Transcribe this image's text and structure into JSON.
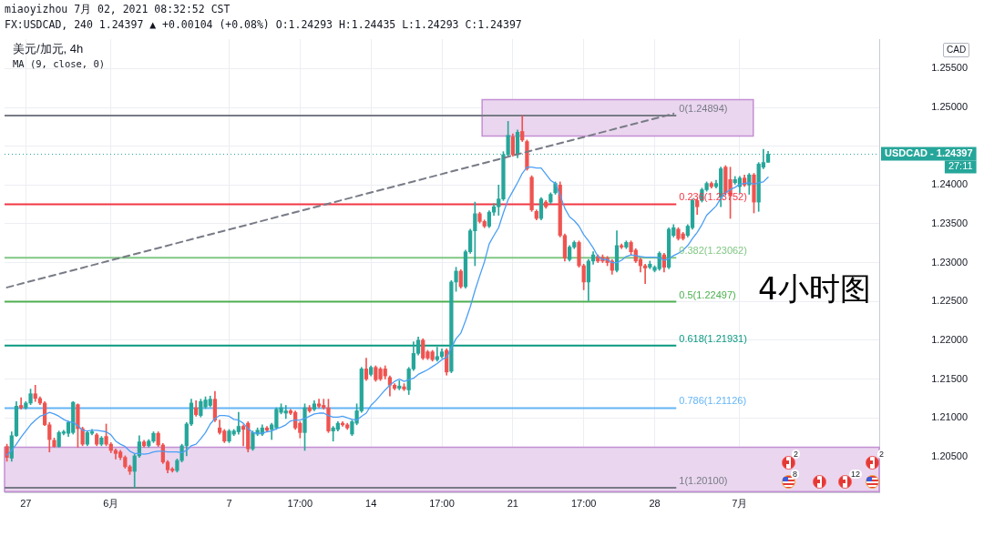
{
  "chart_data": {
    "type": "candlestick",
    "title": "美元/加元, 4h",
    "subtitle": "MA (9, close, 0)",
    "ylabel": "CAD",
    "annotations": [
      "miaoyizhou 7月 02, 2021 08:32:52 CST",
      "FX:USDCAD, 240 1.24397 ▲ +0.00104 (+0.08%) O:1.24293 H:1.24435 L:1.24293 C:1.24397",
      "4小时图",
      "27:11",
      "2",
      "8",
      "12",
      "2"
    ],
    "categories": [
      null,
      null,
      null,
      null,
      "27",
      null,
      null,
      null,
      null,
      null,
      null,
      null,
      null,
      null,
      null,
      null,
      null,
      null,
      null,
      null,
      null,
      null,
      "6月",
      null,
      null,
      null,
      null,
      null,
      null,
      null,
      null,
      null,
      null,
      null,
      null,
      null,
      null,
      null,
      null,
      null,
      null,
      null,
      null,
      null,
      null,
      null,
      null,
      "7",
      null,
      null,
      null,
      null,
      null,
      null,
      null,
      null,
      null,
      null,
      null,
      null,
      null,
      null,
      "17:00",
      null,
      null,
      null,
      null,
      null,
      null,
      null,
      null,
      null,
      null,
      null,
      null,
      null,
      null,
      "14",
      null,
      null,
      null,
      null,
      null,
      null,
      null,
      null,
      null,
      null,
      null,
      null,
      null,
      null,
      "17:00",
      null,
      null,
      null,
      null,
      null,
      null,
      null,
      null,
      null,
      null,
      null,
      null,
      null,
      null,
      "21",
      null,
      null,
      null,
      null,
      null,
      null,
      null,
      null,
      null,
      null,
      null,
      null,
      null,
      null,
      "17:00",
      null,
      null,
      null,
      null,
      null,
      null,
      null,
      null,
      null,
      null,
      null,
      null,
      null,
      null,
      "28",
      null,
      null,
      null,
      null,
      null,
      null,
      null,
      null,
      null,
      null,
      null,
      null,
      null,
      null,
      null,
      null,
      null,
      "7月",
      null,
      null,
      null,
      null,
      null,
      null,
      null,
      null,
      null,
      null,
      null,
      null,
      null,
      null,
      null,
      null,
      null,
      null,
      null,
      null,
      null,
      null,
      null,
      null,
      null,
      null,
      null,
      null,
      null
    ],
    "ohlc": [
      [
        1.2063,
        1.2066,
        1.2044,
        1.2049
      ],
      [
        1.2048,
        1.2082,
        1.2044,
        1.2077
      ],
      [
        1.2077,
        1.2121,
        1.2076,
        1.2115
      ],
      [
        1.2116,
        1.2126,
        1.2111,
        1.2113
      ],
      [
        1.2113,
        1.2121,
        1.2111,
        1.2119
      ],
      [
        1.2119,
        1.2137,
        1.2117,
        1.2131
      ],
      [
        1.2131,
        1.2142,
        1.2121,
        1.2125
      ],
      [
        1.2125,
        1.2127,
        1.2117,
        1.2119
      ],
      [
        1.2119,
        1.2121,
        1.209,
        1.2091
      ],
      [
        1.2091,
        1.2094,
        1.2056,
        1.2072
      ],
      [
        1.2071,
        1.2074,
        1.2062,
        1.2063
      ],
      [
        1.2063,
        1.2083,
        1.2062,
        1.2081
      ],
      [
        1.208,
        1.2084,
        1.2078,
        1.2082
      ],
      [
        1.208,
        1.2096,
        1.2076,
        1.2094
      ],
      [
        1.2081,
        1.2121,
        1.2079,
        1.212
      ],
      [
        1.2117,
        1.2118,
        1.2062,
        1.2086
      ],
      [
        1.2086,
        1.2088,
        1.2064,
        1.2066
      ],
      [
        1.2066,
        1.2083,
        1.2064,
        1.2081
      ],
      [
        1.208,
        1.2085,
        1.2078,
        1.2082
      ],
      [
        1.2078,
        1.208,
        1.2064,
        1.2066
      ],
      [
        1.2066,
        1.2076,
        1.2064,
        1.2074
      ],
      [
        1.2076,
        1.2092,
        1.2064,
        1.2066
      ],
      [
        1.2066,
        1.2068,
        1.2055,
        1.2058
      ],
      [
        1.2058,
        1.206,
        1.2047,
        1.2054
      ],
      [
        1.2056,
        1.2058,
        1.2046,
        1.2049
      ],
      [
        1.2049,
        1.2051,
        1.2035,
        1.2037
      ],
      [
        1.2037,
        1.2039,
        1.2027,
        1.2031
      ],
      [
        1.2031,
        1.2053,
        1.201,
        1.2051
      ],
      [
        1.2051,
        1.2077,
        1.2049,
        1.2069
      ],
      [
        1.2069,
        1.2071,
        1.2062,
        1.2064
      ],
      [
        1.2064,
        1.2072,
        1.2062,
        1.207
      ],
      [
        1.207,
        1.2082,
        1.2068,
        1.208
      ],
      [
        1.208,
        1.2082,
        1.2063,
        1.2065
      ],
      [
        1.2065,
        1.2067,
        1.2041,
        1.2043
      ],
      [
        1.2043,
        1.2045,
        1.2029,
        1.2033
      ],
      [
        1.2034,
        1.2036,
        1.203,
        1.2032
      ],
      [
        1.2032,
        1.2047,
        1.203,
        1.2045
      ],
      [
        1.2045,
        1.2066,
        1.2043,
        1.2064
      ],
      [
        1.2064,
        1.2094,
        1.2051,
        1.2092
      ],
      [
        1.2092,
        1.2124,
        1.209,
        1.2119
      ],
      [
        1.2113,
        1.2122,
        1.2102,
        1.2104
      ],
      [
        1.2103,
        1.2124,
        1.2101,
        1.2121
      ],
      [
        1.2114,
        1.2127,
        1.2112,
        1.2123
      ],
      [
        1.2116,
        1.2128,
        1.2114,
        1.2124
      ],
      [
        1.2124,
        1.2134,
        1.2095,
        1.2097
      ],
      [
        1.2087,
        1.2097,
        1.2079,
        1.2081
      ],
      [
        1.2083,
        1.2085,
        1.2068,
        1.207
      ],
      [
        1.207,
        1.2085,
        1.2068,
        1.2083
      ],
      [
        1.2079,
        1.2085,
        1.2077,
        1.2083
      ],
      [
        1.2082,
        1.2107,
        1.2079,
        1.2089
      ],
      [
        1.2089,
        1.2091,
        1.2064,
        1.2085
      ],
      [
        1.2093,
        1.2095,
        1.2056,
        1.206
      ],
      [
        1.206,
        1.2083,
        1.2058,
        1.2081
      ],
      [
        1.2079,
        1.2087,
        1.2077,
        1.2084
      ],
      [
        1.2079,
        1.2091,
        1.2077,
        1.2087
      ],
      [
        1.2087,
        1.2089,
        1.2082,
        1.2084
      ],
      [
        1.2085,
        1.2093,
        1.2072,
        1.2091
      ],
      [
        1.2087,
        1.2113,
        1.2085,
        1.2111
      ],
      [
        1.2107,
        1.2118,
        1.2105,
        1.2113
      ],
      [
        1.2106,
        1.2116,
        1.2099,
        1.2109
      ],
      [
        1.2109,
        1.2111,
        1.2104,
        1.2106
      ],
      [
        1.2107,
        1.2109,
        1.2085,
        1.2087
      ],
      [
        1.2093,
        1.2095,
        1.2074,
        1.2081
      ],
      [
        1.2081,
        1.2118,
        1.2058,
        1.2113
      ],
      [
        1.2113,
        1.2116,
        1.2107,
        1.2109
      ],
      [
        1.2111,
        1.2122,
        1.2109,
        1.2118
      ],
      [
        1.2118,
        1.2124,
        1.2113,
        1.2115
      ],
      [
        1.2116,
        1.2124,
        1.2111,
        1.2113
      ],
      [
        1.2113,
        1.2124,
        1.2081,
        1.2083
      ],
      [
        1.2083,
        1.2089,
        1.207,
        1.2087
      ],
      [
        1.2085,
        1.2095,
        1.2083,
        1.2093
      ],
      [
        1.2093,
        1.2095,
        1.2089,
        1.2091
      ],
      [
        1.2091,
        1.2093,
        1.2085,
        1.2087
      ],
      [
        1.2079,
        1.2097,
        1.2077,
        1.2095
      ],
      [
        1.2093,
        1.2118,
        1.2091,
        1.2109
      ],
      [
        1.2109,
        1.2165,
        1.2107,
        1.2163
      ],
      [
        1.2163,
        1.2177,
        1.2148,
        1.215
      ],
      [
        1.2156,
        1.2167,
        1.2154,
        1.2165
      ],
      [
        1.2165,
        1.2167,
        1.2147,
        1.2149
      ],
      [
        1.2163,
        1.2165,
        1.2148,
        1.215
      ],
      [
        1.2163,
        1.2167,
        1.215,
        1.2154
      ],
      [
        1.2152,
        1.2154,
        1.2128,
        1.2142
      ],
      [
        1.2142,
        1.2144,
        1.2136,
        1.2138
      ],
      [
        1.2138,
        1.2148,
        1.2136,
        1.2141
      ],
      [
        1.214,
        1.2144,
        1.2135,
        1.2137
      ],
      [
        1.2136,
        1.2165,
        1.213,
        1.2163
      ],
      [
        1.2163,
        1.2198,
        1.2161,
        1.2183
      ],
      [
        1.2183,
        1.2204,
        1.2181,
        1.22
      ],
      [
        1.22,
        1.2202,
        1.2175,
        1.2177
      ],
      [
        1.2185,
        1.2187,
        1.2175,
        1.2177
      ],
      [
        1.2185,
        1.2187,
        1.2173,
        1.2175
      ],
      [
        1.2175,
        1.2191,
        1.2173,
        1.2179
      ],
      [
        1.2179,
        1.2189,
        1.2177,
        1.2185
      ],
      [
        1.2187,
        1.2189,
        1.2155,
        1.2159
      ],
      [
        1.216,
        1.2277,
        1.2158,
        1.2275
      ],
      [
        1.2275,
        1.2294,
        1.2263,
        1.2289
      ],
      [
        1.2289,
        1.2291,
        1.2267,
        1.2269
      ],
      [
        1.2269,
        1.2316,
        1.2267,
        1.2314
      ],
      [
        1.2314,
        1.2343,
        1.2312,
        1.2341
      ],
      [
        1.2341,
        1.2378,
        1.2296,
        1.2363
      ],
      [
        1.2363,
        1.2365,
        1.2351,
        1.2353
      ],
      [
        1.2353,
        1.2355,
        1.2345,
        1.2347
      ],
      [
        1.2347,
        1.2367,
        1.2345,
        1.2365
      ],
      [
        1.2365,
        1.2376,
        1.2361,
        1.2372
      ],
      [
        1.2372,
        1.24,
        1.2361,
        1.2382
      ],
      [
        1.2382,
        1.2443,
        1.238,
        1.2439
      ],
      [
        1.2439,
        1.2482,
        1.2437,
        1.2464
      ],
      [
        1.2462,
        1.2466,
        1.2437,
        1.2439
      ],
      [
        1.2439,
        1.2471,
        1.2435,
        1.2468
      ],
      [
        1.2469,
        1.24894,
        1.2456,
        1.2458
      ],
      [
        1.2456,
        1.2458,
        1.2419,
        1.2421
      ],
      [
        1.241,
        1.2412,
        1.2366,
        1.2368
      ],
      [
        1.2366,
        1.2368,
        1.2355,
        1.2357
      ],
      [
        1.2357,
        1.2384,
        1.2355,
        1.2382
      ],
      [
        1.2378,
        1.238,
        1.237,
        1.2372
      ],
      [
        1.2378,
        1.239,
        1.2376,
        1.2388
      ],
      [
        1.239,
        1.2404,
        1.2388,
        1.2402
      ],
      [
        1.24,
        1.2404,
        1.2333,
        1.2335
      ],
      [
        1.2335,
        1.2337,
        1.2302,
        1.2306
      ],
      [
        1.2304,
        1.2322,
        1.2302,
        1.232
      ],
      [
        1.232,
        1.2328,
        1.2318,
        1.2326
      ],
      [
        1.2326,
        1.2328,
        1.2294,
        1.2296
      ],
      [
        1.2296,
        1.2298,
        1.2265,
        1.2275
      ],
      [
        1.2275,
        1.2304,
        1.2251,
        1.2302
      ],
      [
        1.2302,
        1.2314,
        1.2298,
        1.231
      ],
      [
        1.2308,
        1.231,
        1.23,
        1.2302
      ],
      [
        1.2307,
        1.231,
        1.23,
        1.2302
      ],
      [
        1.2306,
        1.2308,
        1.2296,
        1.23
      ],
      [
        1.2302,
        1.2304,
        1.2285,
        1.229
      ],
      [
        1.229,
        1.2341,
        1.2288,
        1.2322
      ],
      [
        1.2322,
        1.2324,
        1.2318,
        1.232
      ],
      [
        1.232,
        1.2328,
        1.2318,
        1.2326
      ],
      [
        1.2326,
        1.2328,
        1.231,
        1.2314
      ],
      [
        1.2316,
        1.2318,
        1.23,
        1.2302
      ],
      [
        1.2304,
        1.2306,
        1.2288,
        1.2296
      ],
      [
        1.2296,
        1.2298,
        1.2273,
        1.2293
      ],
      [
        1.2294,
        1.2302,
        1.2292,
        1.2298
      ],
      [
        1.229,
        1.2296,
        1.2288,
        1.2294
      ],
      [
        1.2292,
        1.2314,
        1.229,
        1.2312
      ],
      [
        1.231,
        1.2312,
        1.2288,
        1.2294
      ],
      [
        1.2294,
        1.2345,
        1.2292,
        1.2343
      ],
      [
        1.2335,
        1.2349,
        1.2333,
        1.2345
      ],
      [
        1.2343,
        1.2345,
        1.2329,
        1.2331
      ],
      [
        1.2337,
        1.2339,
        1.2329,
        1.2331
      ],
      [
        1.2335,
        1.2349,
        1.2333,
        1.2347
      ],
      [
        1.2345,
        1.2382,
        1.2343,
        1.238
      ],
      [
        1.238,
        1.2382,
        1.2362,
        1.2372
      ],
      [
        1.238,
        1.2396,
        1.2378,
        1.2394
      ],
      [
        1.2394,
        1.2404,
        1.2392,
        1.2402
      ],
      [
        1.2402,
        1.2404,
        1.2396,
        1.2398
      ],
      [
        1.2398,
        1.2406,
        1.2396,
        1.2402
      ],
      [
        1.2384,
        1.2423,
        1.2372,
        1.2421
      ],
      [
        1.2423,
        1.2425,
        1.2388,
        1.239
      ],
      [
        1.2407,
        1.2423,
        1.2357,
        1.2386
      ],
      [
        1.2403,
        1.2411,
        1.2401,
        1.2407
      ],
      [
        1.2398,
        1.2411,
        1.239,
        1.2409
      ],
      [
        1.2409,
        1.2413,
        1.2398,
        1.24
      ],
      [
        1.24,
        1.2415,
        1.2388,
        1.2413
      ],
      [
        1.2413,
        1.2415,
        1.2364,
        1.2378
      ],
      [
        1.2378,
        1.2429,
        1.2366,
        1.2427
      ],
      [
        1.2423,
        1.2446,
        1.2421,
        1.2429
      ],
      [
        1.24293,
        1.24435,
        1.24293,
        1.24397
      ],
      null,
      null,
      null,
      null,
      null,
      null,
      null,
      null,
      null,
      null,
      null,
      null,
      null,
      null,
      null,
      null,
      null,
      null,
      null,
      null,
      null,
      null,
      null
    ],
    "series": [
      {
        "type": "line",
        "color": "#4a9ff5",
        "values": [
          1.2052,
          1.2058,
          1.2066,
          1.2075,
          1.2083,
          1.2091,
          1.2097,
          1.2102,
          1.2104,
          1.2107,
          1.2105,
          1.2102,
          1.2098,
          1.2095,
          1.2094,
          1.209,
          1.2084,
          1.2083,
          1.2084,
          1.2084,
          1.2083,
          1.2082,
          1.2078,
          1.207,
          1.2066,
          1.2063,
          1.2057,
          1.2054,
          1.2054,
          1.2053,
          1.2054,
          1.2056,
          1.2057,
          1.2057,
          1.2056,
          1.2056,
          1.2056,
          1.2055,
          1.2058,
          1.2064,
          1.2066,
          1.2073,
          1.2081,
          1.2092,
          1.2099,
          1.2103,
          1.2103,
          1.2102,
          1.2098,
          1.2097,
          1.2093,
          1.2086,
          1.2081,
          1.208,
          1.208,
          1.2082,
          1.2083,
          1.2086,
          1.2088,
          1.2091,
          1.2096,
          1.2097,
          1.2097,
          1.2099,
          1.2102,
          1.2105,
          1.2106,
          1.2106,
          1.2103,
          1.2101,
          1.2101,
          1.2102,
          1.21,
          1.2098,
          1.2097,
          1.2102,
          1.2106,
          1.2116,
          1.2122,
          1.2129,
          1.2136,
          1.2142,
          1.2147,
          1.215,
          1.2147,
          1.2149,
          1.2151,
          1.2156,
          1.2159,
          1.2162,
          1.2166,
          1.217,
          1.2175,
          1.2178,
          1.219,
          1.2202,
          1.2209,
          1.2225,
          1.2243,
          1.2264,
          1.2283,
          1.2301,
          1.2324,
          1.2335,
          1.2345,
          1.2364,
          1.2381,
          1.2392,
          1.2403,
          1.2415,
          1.2423,
          1.2423,
          1.2422,
          1.2422,
          1.2414,
          1.2406,
          1.2402,
          1.2387,
          1.237,
          1.2359,
          1.2354,
          1.2347,
          1.2336,
          1.2328,
          1.2319,
          1.2308,
          1.2304,
          1.2304,
          1.23,
          1.23,
          1.2303,
          1.2308,
          1.231,
          1.2309,
          1.2308,
          1.2307,
          1.2307,
          1.2307,
          1.2306,
          1.2303,
          1.2305,
          1.2309,
          1.2312,
          1.2316,
          1.2322,
          1.2331,
          1.2339,
          1.2349,
          1.2361,
          1.2367,
          1.2373,
          1.2383,
          1.239,
          1.2394,
          1.2397,
          1.2401,
          1.2402,
          1.2403,
          1.2401,
          1.2403,
          1.2404,
          1.241,
          null,
          null,
          null,
          null,
          null,
          null,
          null,
          null,
          null,
          null,
          null,
          null,
          null,
          null,
          null,
          null,
          null,
          null,
          null,
          null,
          null,
          null,
          null
        ]
      },
      {
        "type": "line",
        "color": "#787b86",
        "line_style": "dashed",
        "values": [
          1.2268,
          null,
          null,
          null,
          null,
          null,
          null,
          null,
          null,
          null,
          null,
          null,
          null,
          null,
          null,
          null,
          null,
          null,
          null,
          null,
          null,
          null,
          null,
          null,
          null,
          null,
          null,
          null,
          null,
          null,
          null,
          null,
          null,
          null,
          null,
          null,
          null,
          null,
          null,
          null,
          null,
          null,
          null,
          null,
          null,
          null,
          null,
          null,
          null,
          null,
          null,
          null,
          null,
          null,
          null,
          null,
          null,
          null,
          null,
          null,
          null,
          null,
          null,
          null,
          null,
          null,
          null,
          null,
          null,
          null,
          null,
          null,
          null,
          null,
          null,
          null,
          null,
          null,
          null,
          null,
          null,
          null,
          null,
          null,
          null,
          null,
          null,
          null,
          null,
          null,
          null,
          null,
          null,
          null,
          null,
          null,
          null,
          null,
          null,
          null,
          null,
          null,
          null,
          null,
          null,
          null,
          null,
          null,
          null,
          null,
          null,
          null,
          null,
          null,
          null,
          null,
          null,
          null,
          null,
          null,
          null,
          null,
          null,
          null,
          null,
          null,
          null,
          null,
          null,
          null,
          null,
          null,
          null,
          null,
          null,
          null,
          null,
          null,
          null,
          null,
          null,
          1.2492,
          null,
          null,
          null,
          null,
          null,
          null,
          null,
          null,
          null,
          null,
          null,
          null,
          null,
          null,
          null,
          null,
          null,
          null,
          null,
          null,
          null,
          null,
          null,
          null,
          null,
          null,
          null,
          null,
          null,
          null,
          null,
          null,
          null,
          null,
          null,
          null,
          null,
          null,
          null,
          null,
          null,
          null,
          null
        ]
      }
    ],
    "ylim": [
      1.2004,
      1.2588
    ],
    "yticks": [
      {
        "value": 1.205,
        "label": "1.20500"
      },
      {
        "value": 1.21,
        "label": "1.21000"
      },
      {
        "value": 1.215,
        "label": "1.21500"
      },
      {
        "value": 1.22,
        "label": "1.22000"
      },
      {
        "value": 1.225,
        "label": "1.22500"
      },
      {
        "value": 1.23,
        "label": "1.23000"
      },
      {
        "value": 1.235,
        "label": "1.23500"
      },
      {
        "value": 1.24,
        "label": "1.24000"
      },
      {
        "value": 1.245,
        "label": null
      },
      {
        "value": 1.25,
        "label": "1.25000"
      },
      {
        "value": 1.255,
        "label": "1.25500"
      }
    ],
    "grid": true,
    "bands": [
      {
        "axis": "y",
        "from": 1.2005,
        "to": 1.2062,
        "color": "#ead6ef"
      },
      {
        "axis": "y",
        "from": 1.2463,
        "to": 1.251,
        "color": "#ead6ef"
      }
    ],
    "ref_lines": [
      {
        "axis": "y",
        "value": 1.24894,
        "label": "0(1.24894)",
        "color": "#787b86"
      },
      {
        "axis": "y",
        "value": 1.23752,
        "label": "0.236(1.23752)",
        "color": "#f23645"
      },
      {
        "axis": "y",
        "value": 1.23062,
        "label": "0.382(1.23062)",
        "color": "#81c784"
      },
      {
        "axis": "y",
        "value": 1.22497,
        "label": "0.5(1.22497)",
        "color": "#4caf50"
      },
      {
        "axis": "y",
        "value": 1.21931,
        "label": "0.618(1.21931)",
        "color": "#089981"
      },
      {
        "axis": "y",
        "value": 1.21126,
        "label": "0.786(1.21126)",
        "color": "#64b5f6"
      },
      {
        "axis": "y",
        "value": 1.201,
        "label": "1(1.20100)",
        "color": "#787b86"
      },
      {
        "axis": "y",
        "value": 1.24397,
        "label": "USDCAD - 1.24397",
        "color": "#26a69a",
        "line_style": "dotted"
      }
    ]
  }
}
